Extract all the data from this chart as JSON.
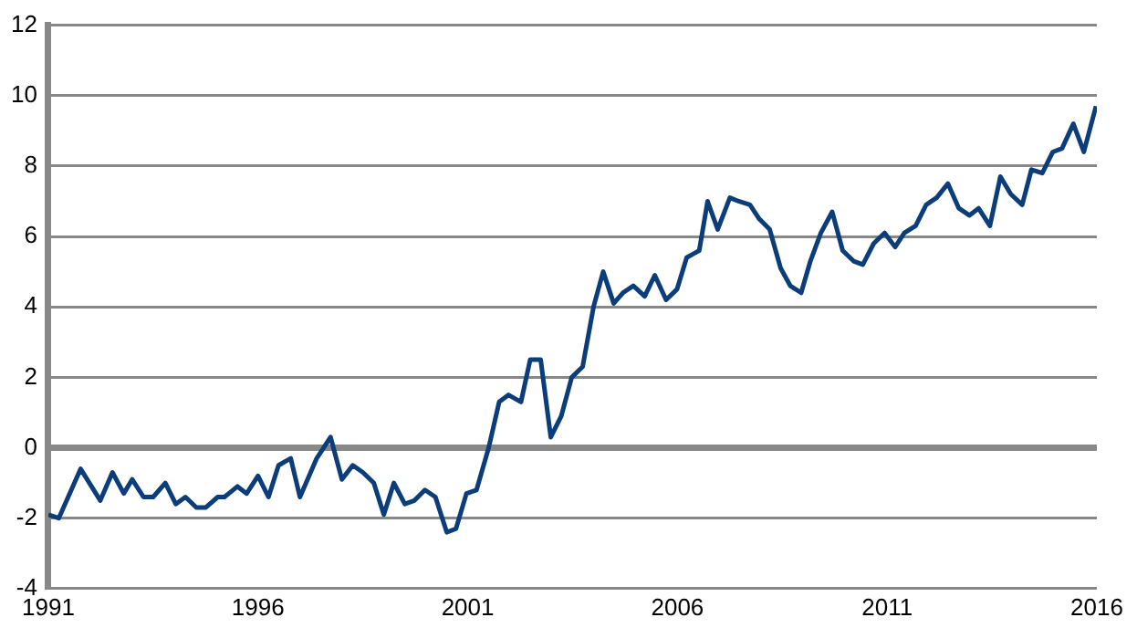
{
  "chart_data": {
    "type": "line",
    "x": [
      1991.0,
      1991.25,
      1991.77,
      1992.24,
      1992.53,
      1992.8,
      1993.0,
      1993.27,
      1993.5,
      1993.79,
      1994.04,
      1994.27,
      1994.53,
      1994.75,
      1995.04,
      1995.2,
      1995.51,
      1995.73,
      1996.0,
      1996.25,
      1996.49,
      1996.78,
      1997.0,
      1997.4,
      1997.73,
      1998.0,
      1998.26,
      1998.5,
      1998.76,
      1999.0,
      1999.24,
      1999.5,
      1999.73,
      1999.98,
      2000.23,
      2000.5,
      2000.72,
      2000.97,
      2001.21,
      2001.5,
      2001.75,
      2001.97,
      2002.27,
      2002.49,
      2002.74,
      2002.98,
      2003.23,
      2003.48,
      2003.74,
      2004.0,
      2004.23,
      2004.48,
      2004.7,
      2004.95,
      2005.22,
      2005.46,
      2005.73,
      2005.99,
      2006.22,
      2006.52,
      2006.72,
      2006.96,
      2007.25,
      2007.46,
      2007.73,
      2007.95,
      2008.2,
      2008.46,
      2008.69,
      2008.95,
      2009.17,
      2009.42,
      2009.69,
      2009.94,
      2010.2,
      2010.42,
      2010.68,
      2010.94,
      2011.19,
      2011.41,
      2011.68,
      2011.93,
      2012.18,
      2012.45,
      2012.71,
      2012.96,
      2013.18,
      2013.45,
      2013.7,
      2013.95,
      2014.22,
      2014.44,
      2014.7,
      2014.95,
      2015.17,
      2015.44,
      2015.69,
      2015.98
    ],
    "series": [
      {
        "color": "#0b3d7a",
        "values": [
          -1.9,
          -2.0,
          -0.6,
          -1.5,
          -0.7,
          -1.3,
          -0.9,
          -1.4,
          -1.4,
          -1.0,
          -1.6,
          -1.4,
          -1.7,
          -1.7,
          -1.4,
          -1.4,
          -1.1,
          -1.3,
          -0.8,
          -1.4,
          -0.5,
          -0.3,
          -1.4,
          -0.3,
          0.3,
          -0.9,
          -0.5,
          -0.7,
          -1.0,
          -1.9,
          -1.0,
          -1.6,
          -1.5,
          -1.2,
          -1.4,
          -2.4,
          -2.3,
          -1.3,
          -1.2,
          0.0,
          1.3,
          1.5,
          1.3,
          2.5,
          2.5,
          0.3,
          0.9,
          2.0,
          2.3,
          4.0,
          5.0,
          4.1,
          4.4,
          4.6,
          4.3,
          4.9,
          4.2,
          4.5,
          5.4,
          5.6,
          7.0,
          6.2,
          7.1,
          7.0,
          6.9,
          6.5,
          6.2,
          5.1,
          4.6,
          4.4,
          5.3,
          6.1,
          6.7,
          5.6,
          5.3,
          5.2,
          5.8,
          6.1,
          5.7,
          6.1,
          6.3,
          6.9,
          7.1,
          7.5,
          6.8,
          6.6,
          6.8,
          6.3,
          7.7,
          7.2,
          6.9,
          7.9,
          7.8,
          8.4,
          8.5,
          9.2,
          8.4,
          9.7
        ]
      }
    ],
    "xlim": [
      1991,
      2016
    ],
    "xticks": [
      1991,
      1996,
      2001,
      2006,
      2011,
      2016
    ],
    "ylim": [
      -4,
      12
    ],
    "yticks": [
      -4,
      -2,
      0,
      2,
      4,
      6,
      8,
      10,
      12
    ],
    "grid": "y",
    "legend": false,
    "marker": "none",
    "line_style": "solid"
  }
}
